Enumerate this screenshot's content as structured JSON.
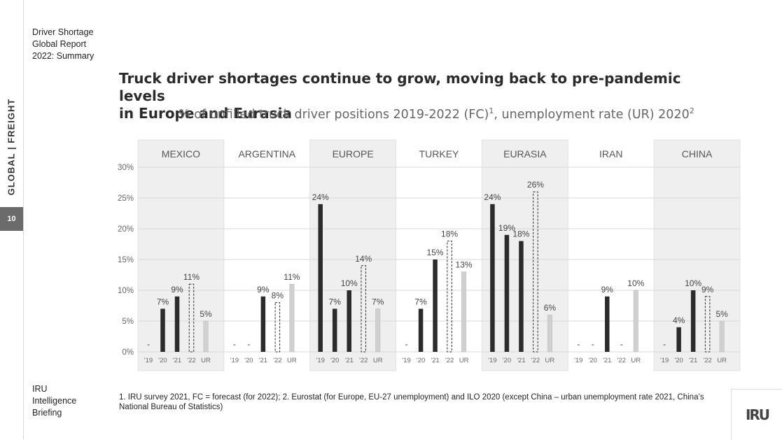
{
  "sidebar": {
    "brand": "GLOBAL | FREIGHT",
    "page_number": "10"
  },
  "report": {
    "line1": "Driver Shortage",
    "line2": "Global Report",
    "line3": "2022: Summary"
  },
  "title": {
    "line1": "Truck driver shortages continue to grow, moving back to pre-pandemic levels",
    "line2": "in Europe and Eurasia"
  },
  "subtitle": {
    "text": "% of unfilled truck driver positions 2019-2022 (FC)",
    "sup1": "1",
    "text2": ", unemployment rate (UR) 2020",
    "sup2": "2"
  },
  "chart_data": {
    "type": "bar",
    "categories": [
      "'19",
      "'20",
      "'21",
      "'22",
      "UR"
    ],
    "ylim": [
      0,
      30
    ],
    "yticks": [
      "0%",
      "5%",
      "10%",
      "15%",
      "20%",
      "25%",
      "30%"
    ],
    "grid": true,
    "colors": {
      "actual": "#2b2b2b",
      "forecast_border": "#2b2b2b",
      "ur": "#d0d0d0",
      "panel_shaded": "#efefef",
      "grid": "#d9d9d9"
    },
    "panels": [
      {
        "name": "MEXICO",
        "shaded": true,
        "values": [
          null,
          7,
          9,
          11,
          5
        ],
        "labels": [
          "-",
          "7%",
          "9%",
          "11%",
          "5%"
        ]
      },
      {
        "name": "ARGENTINA",
        "shaded": false,
        "values": [
          null,
          null,
          9,
          8,
          11
        ],
        "labels": [
          "-",
          "-",
          "9%",
          "8%",
          "11%"
        ]
      },
      {
        "name": "EUROPE",
        "shaded": true,
        "values": [
          24,
          7,
          10,
          14,
          7
        ],
        "labels": [
          "24%",
          "7%",
          "10%",
          "14%",
          "7%"
        ]
      },
      {
        "name": "TURKEY",
        "shaded": false,
        "values": [
          null,
          7,
          15,
          18,
          13
        ],
        "labels": [
          "-",
          "7%",
          "15%",
          "18%",
          "13%"
        ]
      },
      {
        "name": "EURASIA",
        "shaded": true,
        "values": [
          24,
          19,
          18,
          26,
          6
        ],
        "labels": [
          "24%",
          "19%",
          "18%",
          "26%",
          "6%"
        ]
      },
      {
        "name": "IRAN",
        "shaded": false,
        "values": [
          null,
          null,
          9,
          null,
          10
        ],
        "labels": [
          "-",
          "-",
          "9%",
          "-",
          "10%"
        ]
      },
      {
        "name": "CHINA",
        "shaded": true,
        "values": [
          null,
          4,
          10,
          9,
          5
        ],
        "labels": [
          "-",
          "4%",
          "10%",
          "9%",
          "5%"
        ]
      }
    ]
  },
  "footnote": {
    "text": "1. IRU survey 2021, FC = forecast (for 2022); 2. Eurostat (for Europe, EU-27 unemployment) and ILO 2020 (except China –  urban unemployment rate 2021, China’s National Bureau of Statistics)"
  },
  "briefing": {
    "line1": "IRU",
    "line2": "Intelligence",
    "line3": "Briefing"
  },
  "logo": {
    "text": "IRU"
  }
}
